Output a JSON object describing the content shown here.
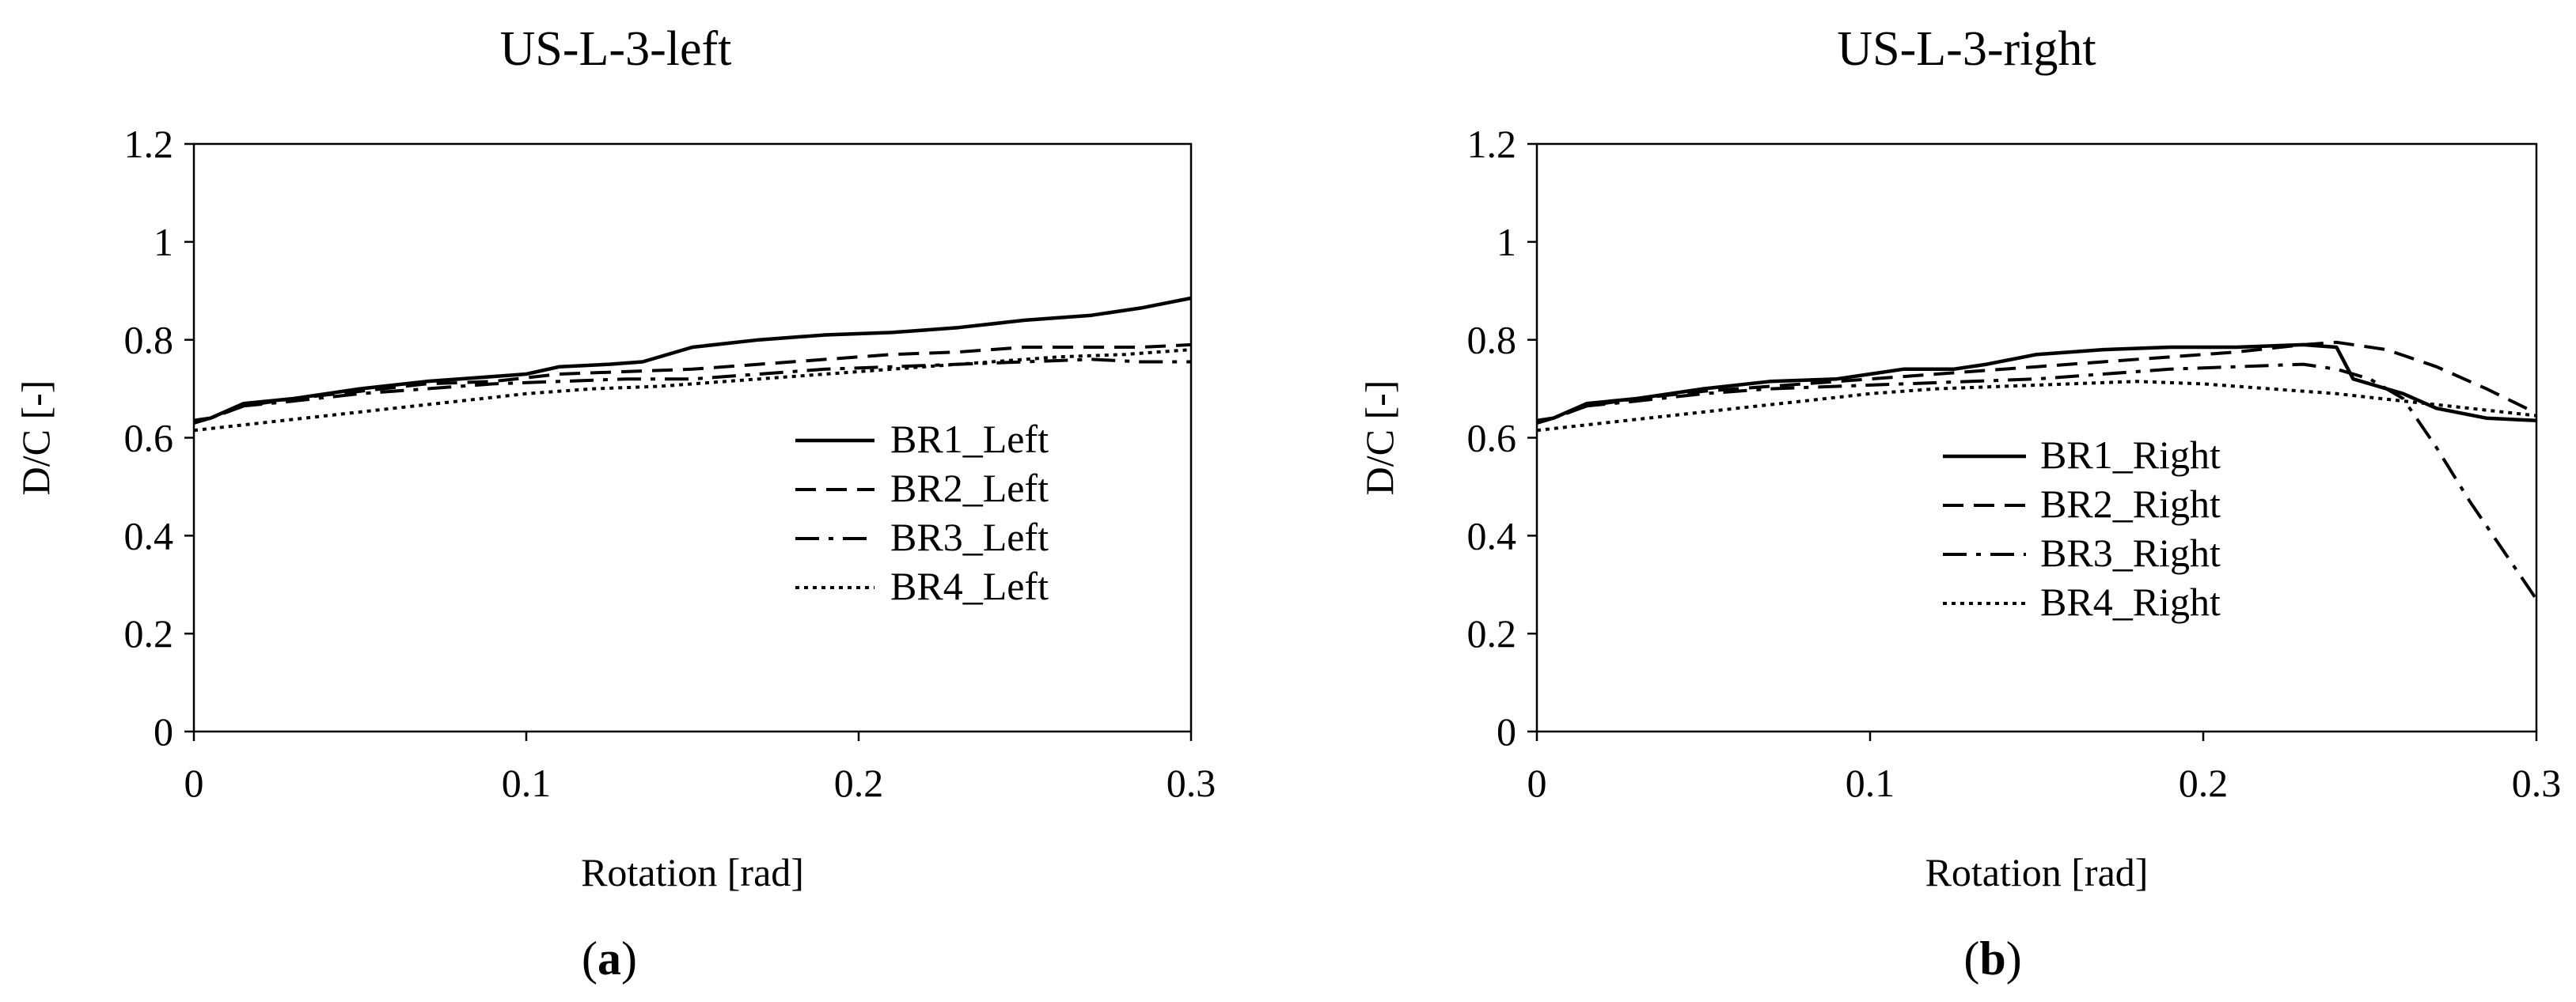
{
  "chart_data": [
    {
      "type": "line",
      "title": "US-L-3-left",
      "panel_label": "a",
      "xlabel": "Rotation [rad]",
      "ylabel": "D/C [-]",
      "xlim": [
        0,
        0.3
      ],
      "ylim": [
        0,
        1.2
      ],
      "xticks": [
        0,
        0.1,
        0.2,
        0.3
      ],
      "xtick_labels": [
        "0",
        "0.1",
        "0.2",
        "0.3"
      ],
      "yticks": [
        0,
        0.2,
        0.4,
        0.6,
        0.8,
        1,
        1.2
      ],
      "ytick_labels": [
        "0",
        "0.2",
        "0.4",
        "0.6",
        "0.8",
        "1",
        "1.2"
      ],
      "grid": false,
      "legend_position": "lower-right",
      "series": [
        {
          "name": "BR1_Left",
          "style": "solid",
          "x": [
            0,
            0.005,
            0.015,
            0.03,
            0.05,
            0.07,
            0.09,
            0.1,
            0.11,
            0.125,
            0.135,
            0.15,
            0.17,
            0.19,
            0.21,
            0.23,
            0.25,
            0.27,
            0.285,
            0.3
          ],
          "y": [
            0.635,
            0.64,
            0.67,
            0.68,
            0.7,
            0.715,
            0.725,
            0.73,
            0.745,
            0.75,
            0.755,
            0.785,
            0.8,
            0.81,
            0.815,
            0.825,
            0.84,
            0.85,
            0.865,
            0.885
          ]
        },
        {
          "name": "BR2_Left",
          "style": "dashed",
          "x": [
            0,
            0.005,
            0.015,
            0.03,
            0.05,
            0.07,
            0.09,
            0.11,
            0.13,
            0.15,
            0.17,
            0.19,
            0.21,
            0.23,
            0.25,
            0.27,
            0.285,
            0.3
          ],
          "y": [
            0.63,
            0.64,
            0.665,
            0.68,
            0.695,
            0.71,
            0.715,
            0.73,
            0.735,
            0.74,
            0.75,
            0.76,
            0.77,
            0.775,
            0.785,
            0.785,
            0.785,
            0.79
          ]
        },
        {
          "name": "BR3_Left",
          "style": "dashdot",
          "x": [
            0,
            0.005,
            0.015,
            0.03,
            0.05,
            0.07,
            0.09,
            0.11,
            0.13,
            0.15,
            0.17,
            0.19,
            0.21,
            0.23,
            0.25,
            0.27,
            0.285,
            0.3
          ],
          "y": [
            0.63,
            0.64,
            0.665,
            0.675,
            0.69,
            0.7,
            0.71,
            0.715,
            0.72,
            0.72,
            0.73,
            0.74,
            0.745,
            0.75,
            0.755,
            0.76,
            0.755,
            0.755
          ]
        },
        {
          "name": "BR4_Left",
          "style": "dotted",
          "x": [
            0,
            0.02,
            0.04,
            0.06,
            0.08,
            0.1,
            0.12,
            0.14,
            0.16,
            0.18,
            0.2,
            0.22,
            0.24,
            0.26,
            0.28,
            0.3
          ],
          "y": [
            0.615,
            0.63,
            0.645,
            0.66,
            0.675,
            0.69,
            0.7,
            0.705,
            0.715,
            0.725,
            0.735,
            0.745,
            0.755,
            0.765,
            0.77,
            0.78
          ]
        }
      ]
    },
    {
      "type": "line",
      "title": "US-L-3-right",
      "panel_label": "b",
      "xlabel": "Rotation [rad]",
      "ylabel": "D/C [-]",
      "xlim": [
        0,
        0.3
      ],
      "ylim": [
        0,
        1.2
      ],
      "xticks": [
        0,
        0.1,
        0.2,
        0.3
      ],
      "xtick_labels": [
        "0",
        "0.1",
        "0.2",
        "0.3"
      ],
      "yticks": [
        0,
        0.2,
        0.4,
        0.6,
        0.8,
        1,
        1.2
      ],
      "ytick_labels": [
        "0",
        "0.2",
        "0.4",
        "0.6",
        "0.8",
        "1",
        "1.2"
      ],
      "grid": false,
      "legend_position": "lower-right",
      "series": [
        {
          "name": "BR1_Right",
          "style": "solid",
          "x": [
            0,
            0.005,
            0.015,
            0.03,
            0.05,
            0.07,
            0.09,
            0.1,
            0.11,
            0.125,
            0.135,
            0.15,
            0.17,
            0.19,
            0.21,
            0.23,
            0.24,
            0.245,
            0.25,
            0.26,
            0.27,
            0.285,
            0.3
          ],
          "y": [
            0.635,
            0.64,
            0.67,
            0.68,
            0.7,
            0.715,
            0.72,
            0.73,
            0.74,
            0.74,
            0.75,
            0.77,
            0.78,
            0.785,
            0.785,
            0.79,
            0.785,
            0.72,
            0.71,
            0.69,
            0.66,
            0.64,
            0.635
          ]
        },
        {
          "name": "BR2_Right",
          "style": "dashed",
          "x": [
            0,
            0.005,
            0.015,
            0.03,
            0.05,
            0.07,
            0.09,
            0.11,
            0.13,
            0.15,
            0.17,
            0.19,
            0.21,
            0.23,
            0.24,
            0.255,
            0.27,
            0.285,
            0.3
          ],
          "y": [
            0.63,
            0.64,
            0.665,
            0.68,
            0.695,
            0.705,
            0.715,
            0.725,
            0.735,
            0.745,
            0.755,
            0.765,
            0.775,
            0.79,
            0.795,
            0.78,
            0.745,
            0.7,
            0.65
          ]
        },
        {
          "name": "BR3_Right",
          "style": "dashdot",
          "x": [
            0,
            0.005,
            0.015,
            0.03,
            0.05,
            0.07,
            0.09,
            0.11,
            0.13,
            0.15,
            0.17,
            0.19,
            0.21,
            0.23,
            0.24,
            0.25,
            0.26,
            0.27,
            0.28,
            0.29,
            0.3
          ],
          "y": [
            0.63,
            0.64,
            0.665,
            0.675,
            0.69,
            0.7,
            0.705,
            0.71,
            0.715,
            0.72,
            0.73,
            0.74,
            0.745,
            0.75,
            0.74,
            0.72,
            0.68,
            0.58,
            0.47,
            0.37,
            0.27
          ]
        },
        {
          "name": "BR4_Right",
          "style": "dotted",
          "x": [
            0,
            0.02,
            0.04,
            0.06,
            0.08,
            0.1,
            0.12,
            0.14,
            0.16,
            0.18,
            0.2,
            0.22,
            0.24,
            0.26,
            0.28,
            0.3
          ],
          "y": [
            0.615,
            0.63,
            0.645,
            0.66,
            0.675,
            0.69,
            0.7,
            0.705,
            0.71,
            0.715,
            0.71,
            0.7,
            0.69,
            0.675,
            0.66,
            0.645
          ]
        }
      ]
    }
  ]
}
